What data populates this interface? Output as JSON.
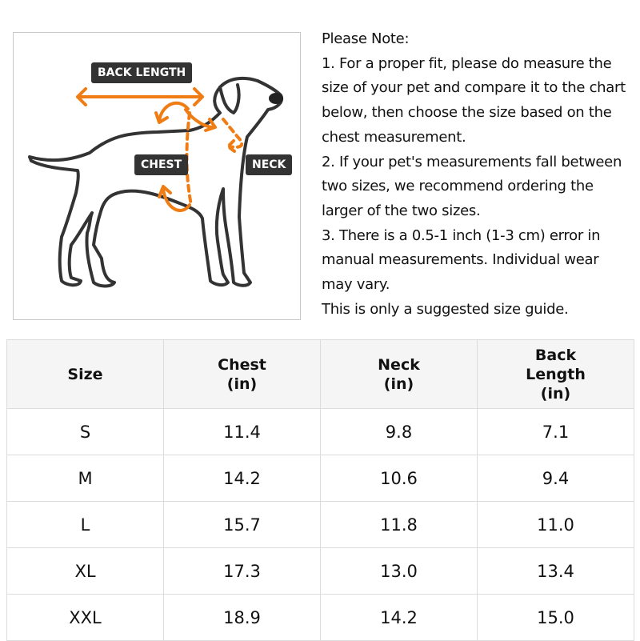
{
  "figure": {
    "labels": {
      "back_length": "BACK LENGTH",
      "chest": "CHEST",
      "neck": "NECK"
    },
    "colors": {
      "arrow": "#f07c14",
      "outline": "#333333"
    }
  },
  "note": {
    "lines": [
      "Please Note:",
      "1. For a proper fit, please do measure the",
      "size of your pet and compare it to the chart",
      "below, then choose the size based on the",
      "chest measurement.",
      "2. If your pet's measurements fall between",
      "two sizes, we recommend ordering the",
      "larger of the two sizes.",
      "3. There is a 0.5-1 inch (1-3 cm) error in",
      "manual measurements. Individual wear",
      "may vary.",
      "This is only a suggested size guide."
    ]
  },
  "table": {
    "headers": [
      [
        "Size"
      ],
      [
        "Chest",
        "(in)"
      ],
      [
        "Neck",
        "(in)"
      ],
      [
        "Back",
        "Length",
        "(in)"
      ]
    ],
    "rows": [
      [
        "S",
        "11.4",
        "9.8",
        "7.1"
      ],
      [
        "M",
        "14.2",
        "10.6",
        "9.4"
      ],
      [
        "L",
        "15.7",
        "11.8",
        "11.0"
      ],
      [
        "XL",
        "17.3",
        "13.0",
        "13.4"
      ],
      [
        "XXL",
        "18.9",
        "14.2",
        "15.0"
      ]
    ]
  }
}
